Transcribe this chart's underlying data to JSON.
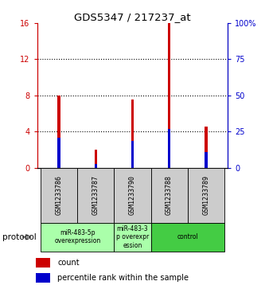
{
  "title": "GDS5347 / 217237_at",
  "samples": [
    "GSM1233786",
    "GSM1233787",
    "GSM1233790",
    "GSM1233788",
    "GSM1233789"
  ],
  "count_values": [
    8.0,
    2.0,
    7.5,
    16.0,
    4.5
  ],
  "percentile_values": [
    20.6,
    2.5,
    18.75,
    26.875,
    10.625
  ],
  "ylim_left": [
    0,
    16
  ],
  "ylim_right": [
    0,
    100
  ],
  "yticks_left": [
    0,
    4,
    8,
    12,
    16
  ],
  "yticks_right": [
    0,
    25,
    50,
    75,
    100
  ],
  "ytick_labels_left": [
    "0",
    "4",
    "8",
    "12",
    "16"
  ],
  "ytick_labels_right": [
    "0",
    "25",
    "50",
    "75",
    "100%"
  ],
  "left_axis_color": "#cc0000",
  "right_axis_color": "#0000cc",
  "bar_color_red": "#cc0000",
  "bar_color_blue": "#0000cc",
  "bar_width": 0.08,
  "legend_count_label": "count",
  "legend_pct_label": "percentile rank within the sample",
  "protocol_label": "protocol",
  "bg_color_samples": "#cccccc",
  "bg_color_group_light": "#aaffaa",
  "bg_color_group_dark": "#44cc44",
  "panel_bg": "#ffffff",
  "groups": [
    {
      "indices": [
        0,
        1
      ],
      "label": "miR-483-5p\noverexpression",
      "light": true
    },
    {
      "indices": [
        2
      ],
      "label": "miR-483-3\np overexpr\nession",
      "light": true
    },
    {
      "indices": [
        3,
        4
      ],
      "label": "control",
      "light": false
    }
  ]
}
